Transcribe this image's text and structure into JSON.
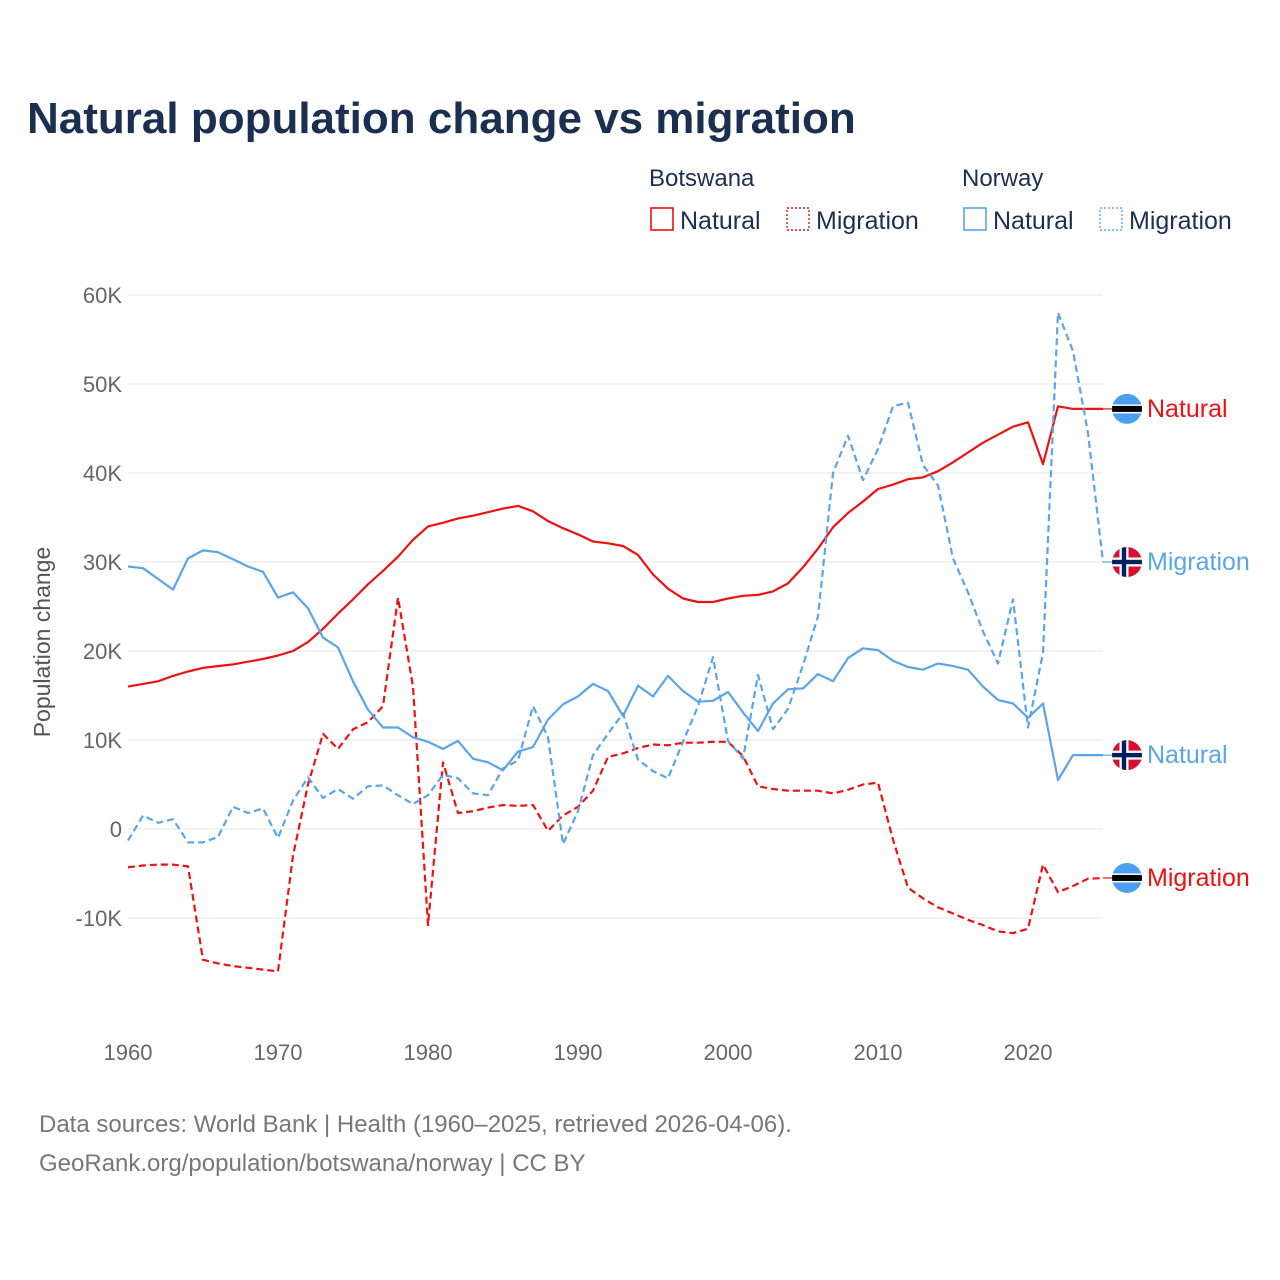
{
  "chart_data": {
    "type": "line",
    "title": "Natural population change vs migration",
    "xlabel": "",
    "ylabel": "Population change",
    "xlim": [
      1960,
      2025
    ],
    "ylim": [
      -20000,
      60000
    ],
    "grid": true,
    "legend_placement": "top-right",
    "x_ticks": [
      1960,
      1970,
      1980,
      1990,
      2000,
      2010,
      2020
    ],
    "x_tick_labels": [
      "1960",
      "1970",
      "1980",
      "1990",
      "2000",
      "2010",
      "2020"
    ],
    "y_ticks": [
      -10000,
      0,
      10000,
      20000,
      30000,
      40000,
      50000,
      60000
    ],
    "y_tick_labels": [
      "-10K",
      "0",
      "10K",
      "20K",
      "30K",
      "40K",
      "50K",
      "60K"
    ],
    "legend": {
      "groups": [
        {
          "country": "Botswana",
          "items": [
            "Natural",
            "Migration"
          ]
        },
        {
          "country": "Norway",
          "items": [
            "Natural",
            "Migration"
          ]
        }
      ]
    },
    "x": [
      1960,
      1961,
      1962,
      1963,
      1964,
      1965,
      1966,
      1967,
      1968,
      1969,
      1970,
      1971,
      1972,
      1973,
      1974,
      1975,
      1976,
      1977,
      1978,
      1979,
      1980,
      1981,
      1982,
      1983,
      1984,
      1985,
      1986,
      1987,
      1988,
      1989,
      1990,
      1991,
      1992,
      1993,
      1994,
      1995,
      1996,
      1997,
      1998,
      1999,
      2000,
      2001,
      2002,
      2003,
      2004,
      2005,
      2006,
      2007,
      2008,
      2009,
      2010,
      2011,
      2012,
      2013,
      2014,
      2015,
      2016,
      2017,
      2018,
      2019,
      2020,
      2021,
      2022,
      2023,
      2024,
      2025
    ],
    "series": [
      {
        "name": "Botswana Natural",
        "country": "Botswana",
        "kind": "Natural",
        "color": "#ee1111",
        "dash": false,
        "end_label": "Natural",
        "flag": "botswana-flag",
        "values": [
          16000,
          16300,
          16600,
          17200,
          17700,
          18100,
          18300,
          18500,
          18800,
          19100,
          19500,
          20000,
          21000,
          22500,
          24200,
          25800,
          27500,
          29000,
          30600,
          32500,
          34000,
          34400,
          34900,
          35200,
          35600,
          36000,
          36300,
          35700,
          34600,
          33800,
          33100,
          32300,
          32100,
          31800,
          30800,
          28600,
          27000,
          25900,
          25500,
          25500,
          25900,
          26200,
          26300,
          26700,
          27600,
          29400,
          31500,
          33900,
          35500,
          36800,
          38200,
          38700,
          39300,
          39500,
          40200,
          41200,
          42300,
          43400,
          44300,
          45200,
          45700,
          41000,
          47500,
          47200,
          47200,
          47200
        ]
      },
      {
        "name": "Botswana Migration",
        "country": "Botswana",
        "kind": "Migration",
        "color": "#ee1111",
        "dash": true,
        "end_label": "Migration",
        "flag": "botswana-flag",
        "values": [
          -4300,
          -4100,
          -4000,
          -4000,
          -4200,
          -14700,
          -15100,
          -15400,
          -15600,
          -15800,
          -16000,
          -3000,
          5000,
          10700,
          9000,
          11200,
          12000,
          13800,
          26000,
          16000,
          -10800,
          7500,
          1800,
          2000,
          2400,
          2700,
          2600,
          2700,
          -200,
          1500,
          2500,
          4300,
          8100,
          8500,
          9100,
          9500,
          9400,
          9700,
          9700,
          9800,
          9800,
          8200,
          4800,
          4500,
          4300,
          4300,
          4300,
          4000,
          4400,
          5000,
          5200,
          -1200,
          -6600,
          -7800,
          -8800,
          -9500,
          -10200,
          -10800,
          -11500,
          -11700,
          -11200,
          -4000,
          -7100,
          -6400,
          -5600,
          -5500
        ]
      },
      {
        "name": "Norway Natural",
        "country": "Norway",
        "kind": "Natural",
        "color": "#5aa5ea",
        "dash": false,
        "end_label": "Natural",
        "flag": "norway-flag",
        "values": [
          29500,
          29300,
          28100,
          26900,
          30400,
          31300,
          31100,
          30300,
          29500,
          28900,
          26000,
          26600,
          24800,
          21500,
          20400,
          16600,
          13400,
          11400,
          11400,
          10300,
          9800,
          9000,
          9900,
          7900,
          7500,
          6600,
          8700,
          9200,
          12300,
          14000,
          14900,
          16300,
          15500,
          12700,
          16100,
          14900,
          17200,
          15500,
          14300,
          14400,
          15400,
          13100,
          11000,
          14100,
          15700,
          15800,
          17400,
          16600,
          19200,
          20300,
          20100,
          18900,
          18200,
          17900,
          18600,
          18300,
          17900,
          16000,
          14500,
          14100,
          12500,
          14100,
          5500,
          8300,
          8300,
          8300
        ]
      },
      {
        "name": "Norway Migration",
        "country": "Norway",
        "kind": "Migration",
        "color": "#5aa5ea",
        "dash": true,
        "end_label": "Migration",
        "flag": "norway-flag",
        "values": [
          -1300,
          1500,
          700,
          1100,
          -1500,
          -1500,
          -900,
          2500,
          1800,
          2300,
          -1000,
          3200,
          5800,
          3500,
          4500,
          3400,
          4800,
          4900,
          3800,
          2800,
          3800,
          6100,
          5700,
          4000,
          3800,
          6800,
          7700,
          13800,
          10300,
          -1700,
          2000,
          8300,
          10700,
          13000,
          7800,
          6500,
          5700,
          9800,
          13800,
          19300,
          9900,
          7900,
          17300,
          11200,
          13500,
          18400,
          23900,
          40000,
          44200,
          39200,
          42700,
          47500,
          47900,
          40900,
          38600,
          30400,
          26600,
          22200,
          18600,
          25800,
          11400,
          19800,
          58000,
          53700,
          44500,
          30000
        ]
      }
    ]
  },
  "footer": {
    "line1": "Data sources: World Bank | Health (1960–2025, retrieved 2026-04-06).",
    "line2": "GeoRank.org/population/botswana/norway | CC BY"
  }
}
